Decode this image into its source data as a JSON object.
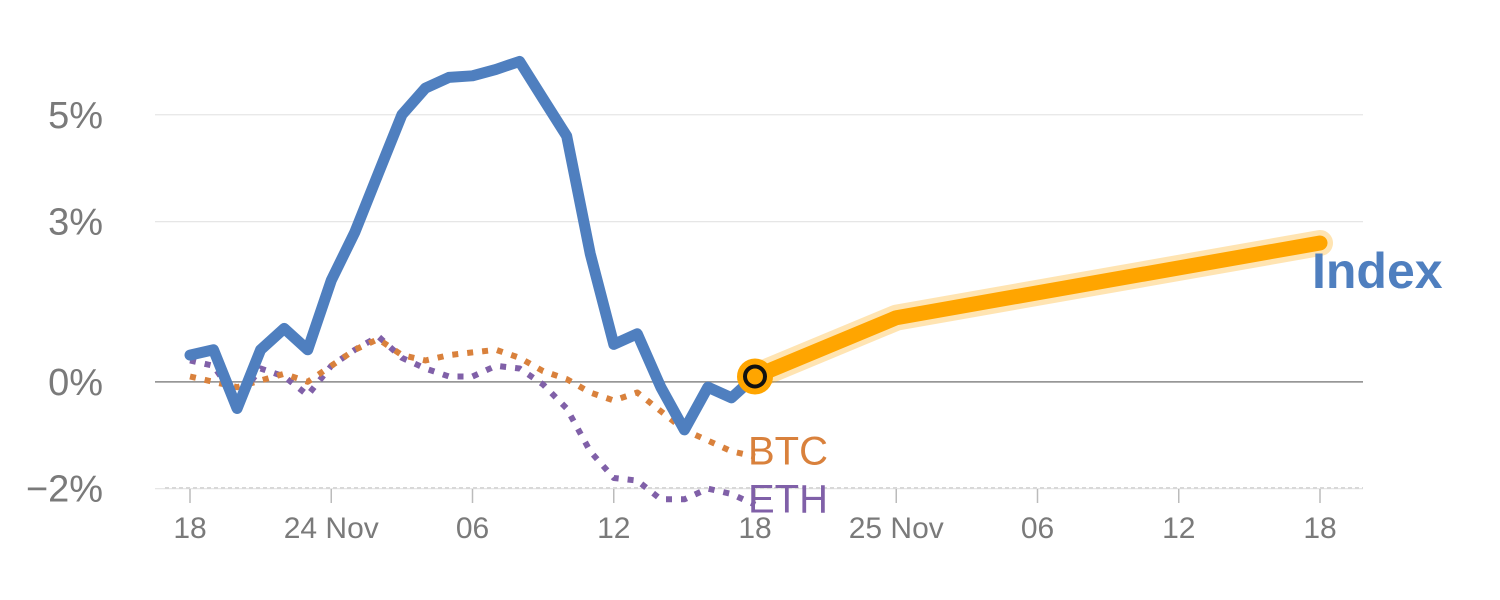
{
  "chart_data": {
    "type": "line",
    "x_ticks": [
      "18",
      "24 Nov",
      "06",
      "12",
      "18",
      "25 Nov",
      "06",
      "12",
      "18"
    ],
    "y_ticks": [
      {
        "value": 5,
        "label": "5%"
      },
      {
        "value": 3,
        "label": "3%"
      },
      {
        "value": 0,
        "label": "0%"
      },
      {
        "value": -2,
        "label": "−2%"
      }
    ],
    "ylim": [
      -2.4,
      6.4
    ],
    "xlim": [
      0,
      48
    ],
    "colors": {
      "index": "#4f7fbf",
      "forecast": "#ffa500",
      "btc": "#d9813c",
      "eth": "#8060a8",
      "zero_line": "#888888",
      "grid": "#e6e6e6",
      "tick_text": "#7a7a7a"
    },
    "series": [
      {
        "name": "Index",
        "style": "solid",
        "x": [
          0,
          1,
          2,
          3,
          4,
          5,
          6,
          7,
          8,
          9,
          10,
          11,
          12,
          13,
          14,
          15,
          16,
          17,
          18,
          19,
          20,
          21,
          22,
          23,
          24
        ],
        "y": [
          0.5,
          0.6,
          -0.5,
          0.6,
          1.0,
          0.6,
          1.9,
          2.8,
          3.9,
          5.0,
          5.5,
          5.7,
          5.73,
          5.85,
          6.0,
          5.3,
          4.6,
          2.4,
          0.7,
          0.9,
          -0.1,
          -0.9,
          -0.1,
          -0.3,
          0.1
        ]
      },
      {
        "name": "BTC",
        "style": "dotted",
        "x": [
          0,
          2,
          4,
          5,
          6,
          7,
          8,
          9,
          10,
          11,
          12,
          13,
          14,
          15,
          16,
          17,
          18,
          19,
          20,
          21,
          22,
          23,
          24
        ],
        "y": [
          0.1,
          -0.1,
          0.15,
          0.0,
          0.3,
          0.6,
          0.8,
          0.5,
          0.4,
          0.5,
          0.55,
          0.6,
          0.45,
          0.2,
          0.05,
          -0.2,
          -0.35,
          -0.2,
          -0.55,
          -0.9,
          -1.1,
          -1.3,
          -1.4
        ]
      },
      {
        "name": "ETH",
        "style": "dotted",
        "x": [
          0,
          1,
          2,
          3,
          4,
          5,
          6,
          7,
          8,
          9,
          10,
          11,
          12,
          13,
          14,
          15,
          16,
          17,
          18,
          19,
          20,
          21,
          22,
          23,
          24
        ],
        "y": [
          0.4,
          0.3,
          -0.35,
          0.25,
          0.1,
          -0.25,
          0.3,
          0.6,
          0.85,
          0.45,
          0.25,
          0.1,
          0.1,
          0.3,
          0.25,
          -0.05,
          -0.5,
          -1.3,
          -1.8,
          -1.85,
          -2.2,
          -2.2,
          -2.0,
          -2.1,
          -2.3
        ]
      },
      {
        "name": "",
        "style": "forecast",
        "x": [
          24,
          30,
          48
        ],
        "y": [
          0.1,
          1.2,
          2.6
        ]
      }
    ],
    "labels": {
      "index": "Index",
      "btc": "BTC",
      "eth": "ETH"
    },
    "marker": {
      "x": 24,
      "y": 0.1
    },
    "grid": true
  }
}
